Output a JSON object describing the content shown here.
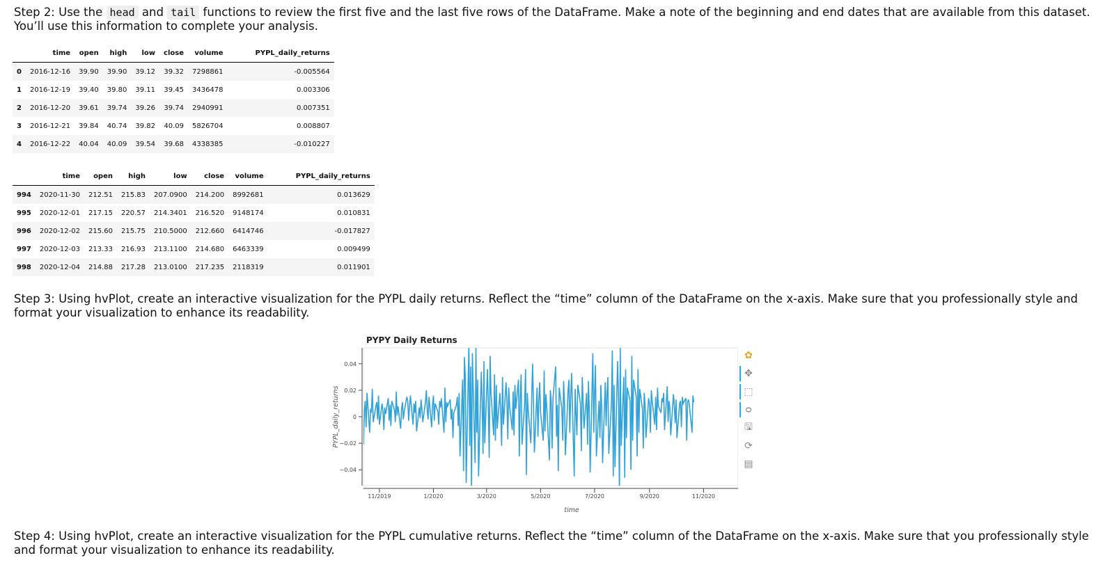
{
  "step2": {
    "prefix": "Step 2: Use the ",
    "code1": "head",
    "mid": " and ",
    "code2": "tail",
    "suffix": " functions to review the first five and the last five rows of the DataFrame. Make a note of the beginning and end dates that are available from this dataset. You’ll use this information to complete your analysis."
  },
  "head_table": {
    "columns": [
      "",
      "time",
      "open",
      "high",
      "low",
      "close",
      "volume",
      "PYPL_daily_returns"
    ],
    "rows": [
      [
        "0",
        "2016-12-16",
        "39.90",
        "39.90",
        "39.12",
        "39.32",
        "7298861",
        "-0.005564"
      ],
      [
        "1",
        "2016-12-19",
        "39.40",
        "39.80",
        "39.11",
        "39.45",
        "3436478",
        "0.003306"
      ],
      [
        "2",
        "2016-12-20",
        "39.61",
        "39.74",
        "39.26",
        "39.74",
        "2940991",
        "0.007351"
      ],
      [
        "3",
        "2016-12-21",
        "39.84",
        "40.74",
        "39.82",
        "40.09",
        "5826704",
        "0.008807"
      ],
      [
        "4",
        "2016-12-22",
        "40.04",
        "40.09",
        "39.54",
        "39.68",
        "4338385",
        "-0.010227"
      ]
    ]
  },
  "tail_table": {
    "columns": [
      "",
      "time",
      "open",
      "high",
      "low",
      "close",
      "volume",
      "PYPL_daily_returns"
    ],
    "rows": [
      [
        "994",
        "2020-11-30",
        "212.51",
        "215.83",
        "207.0900",
        "214.200",
        "8992681",
        "0.013629"
      ],
      [
        "995",
        "2020-12-01",
        "217.15",
        "220.57",
        "214.3401",
        "216.520",
        "9148174",
        "0.010831"
      ],
      [
        "996",
        "2020-12-02",
        "215.60",
        "215.75",
        "210.5000",
        "212.660",
        "6414746",
        "-0.017827"
      ],
      [
        "997",
        "2020-12-03",
        "213.33",
        "216.93",
        "213.1100",
        "214.680",
        "6463339",
        "0.009499"
      ],
      [
        "998",
        "2020-12-04",
        "214.88",
        "217.28",
        "213.0100",
        "217.235",
        "2118319",
        "0.011901"
      ]
    ]
  },
  "step3": {
    "text": "Step 3: Using hvPlot, create an interactive visualization for the PYPL daily returns. Reflect the “time” column of the DataFrame on the x-axis. Make sure that you professionally style and format your visualization to enhance its readability."
  },
  "step4": {
    "text": "Step 4: Using hvPlot, create an interactive visualization for the PYPL cumulative returns. Reflect the “time” column of the DataFrame on the x-axis. Make sure that you professionally style and format your visualization to enhance its readability."
  },
  "toolbar": {
    "icons": [
      "bokeh-logo-icon",
      "pan-icon",
      "box-zoom-icon",
      "wheel-zoom-icon",
      "save-icon",
      "reset-icon",
      "hover-icon"
    ],
    "glyphs": [
      "✿",
      "✥",
      "⬚",
      "ᴑ",
      "🖫",
      "⟳",
      "▤"
    ]
  },
  "chart_data": {
    "type": "line",
    "title": "PYPY Daily Returns",
    "xlabel": "time",
    "ylabel": "PYPL_daily_returns",
    "x_ticks": [
      "11/2019",
      "1/2020",
      "3/2020",
      "5/2020",
      "7/2020",
      "9/2020",
      "11/2020"
    ],
    "y_ticks": [
      "0.04",
      "0.02",
      "0",
      "−0.02",
      "−0.04"
    ],
    "y_tick_values": [
      0.04,
      0.02,
      0,
      -0.02,
      -0.04
    ],
    "ylim": [
      -0.052,
      0.052
    ],
    "xlim": [
      "2019-10-14",
      "2020-12-10"
    ],
    "color": "#30a2da",
    "series": [
      {
        "start": "2019-10-14",
        "frequency": "business-day",
        "values": [
          -0.021,
          0.004,
          0.012,
          -0.008,
          0.018,
          -0.012,
          0.006,
          0.003,
          0.021,
          -0.004,
          0.008,
          0.011,
          -0.002,
          0.016,
          -0.006,
          0.01,
          0.004,
          -0.01,
          0.007,
          0.002,
          0.014,
          -0.003,
          0.009,
          -0.007,
          0.012,
          0.005,
          -0.004,
          0.019,
          0.001,
          0.008,
          -0.009,
          0.006,
          0.011,
          -0.002,
          0.004,
          0.015,
          0.012,
          -0.003,
          0.007,
          0.016,
          -0.006,
          0.01,
          0.003,
          0.012,
          -0.011,
          0.007,
          -0.001,
          0.013,
          0.006,
          -0.004,
          0.011,
          0.02,
          0.005,
          -0.002,
          0.015,
          -0.008,
          0.009,
          0.016,
          -0.003,
          0.01,
          0.004,
          -0.006,
          0.012,
          0.007,
          0.014,
          -0.012,
          0.022,
          -0.004,
          0.011,
          0.008,
          0.013,
          -0.002,
          0.006,
          -0.016,
          0.003,
          0.009,
          0.015,
          -0.007,
          0.018,
          -0.03,
          0.028,
          -0.041,
          0.045,
          0.03,
          -0.05,
          0.055,
          -0.022,
          0.038,
          -0.06,
          0.048,
          -0.035,
          0.052,
          -0.012,
          0.028,
          -0.045,
          0.034,
          0.012,
          -0.028,
          0.042,
          -0.02,
          0.036,
          0.008,
          -0.031,
          0.046,
          0.018,
          -0.014,
          0.032,
          -0.018,
          0.024,
          -0.009,
          0.018,
          0.004,
          -0.022,
          0.03,
          -0.006,
          0.026,
          0.012,
          -0.017,
          0.022,
          0.008,
          -0.01,
          0.019,
          -0.014,
          0.024,
          0.006,
          0.028,
          -0.03,
          0.014,
          0.032,
          -0.021,
          0.011,
          0.036,
          -0.044,
          0.018,
          0.005,
          -0.02,
          0.016,
          0.04,
          0.009,
          -0.027,
          0.022,
          -0.015,
          0.012,
          0.026,
          0.003,
          -0.018,
          0.035,
          -0.011,
          0.017,
          0.007,
          -0.033,
          0.02,
          0.012,
          -0.024,
          0.014,
          0.038,
          -0.015,
          0.009,
          -0.041,
          0.022,
          0.006,
          -0.018,
          0.027,
          0.011,
          -0.029,
          0.019,
          0.028,
          -0.012,
          0.015,
          0.033,
          -0.045,
          0.021,
          0.004,
          -0.014,
          0.024,
          0.01,
          -0.026,
          0.03,
          0.013,
          -0.009,
          0.018,
          -0.021,
          0.027,
          0.005,
          -0.042,
          0.048,
          -0.012,
          0.02,
          0.039,
          -0.03,
          0.012,
          -0.016,
          0.024,
          0.008,
          -0.035,
          0.026,
          -0.007,
          0.018,
          0.03,
          -0.028,
          0.01,
          0.05,
          -0.045,
          0.024,
          -0.038,
          0.042,
          0.014,
          -0.06,
          0.052,
          -0.022,
          0.03,
          -0.046,
          0.036,
          -0.016,
          0.022,
          0.012,
          -0.04,
          0.046,
          -0.018,
          0.028,
          0.015,
          -0.03,
          0.036,
          -0.012,
          0.021,
          0.006,
          -0.024,
          0.018,
          0.008,
          -0.016,
          0.014,
          0.01,
          -0.012,
          0.02,
          0.012,
          -0.006,
          0.015,
          -0.01,
          0.022,
          0.008,
          0.003,
          0.014,
          0.011,
          0.018,
          -0.01,
          0.023,
          -0.004,
          0.012,
          0.006,
          -0.014,
          0.017,
          0.009,
          -0.005,
          0.013,
          -0.016,
          0.01,
          0.012,
          -0.008,
          0.015,
          0.01,
          0.014,
          -0.018,
          0.011,
          0.013,
          0.009,
          -0.012,
          0.016,
          0.011
        ]
      }
    ]
  }
}
